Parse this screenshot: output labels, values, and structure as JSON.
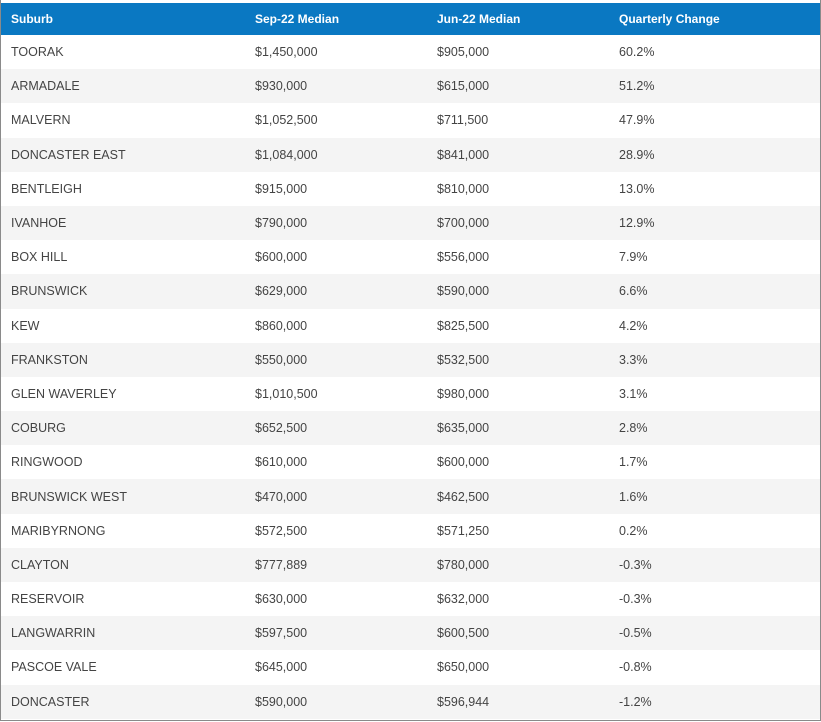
{
  "table": {
    "headers": [
      "Suburb",
      "Sep-22 Median",
      "Jun-22 Median",
      "Quarterly Change"
    ],
    "rows": [
      [
        "TOORAK",
        "$1,450,000",
        "$905,000",
        "60.2%"
      ],
      [
        "ARMADALE",
        "$930,000",
        "$615,000",
        "51.2%"
      ],
      [
        "MALVERN",
        "$1,052,500",
        "$711,500",
        "47.9%"
      ],
      [
        "DONCASTER EAST",
        "$1,084,000",
        "$841,000",
        "28.9%"
      ],
      [
        "BENTLEIGH",
        "$915,000",
        "$810,000",
        "13.0%"
      ],
      [
        "IVANHOE",
        "$790,000",
        "$700,000",
        "12.9%"
      ],
      [
        "BOX HILL",
        "$600,000",
        "$556,000",
        "7.9%"
      ],
      [
        "BRUNSWICK",
        "$629,000",
        "$590,000",
        "6.6%"
      ],
      [
        "KEW",
        "$860,000",
        "$825,500",
        "4.2%"
      ],
      [
        "FRANKSTON",
        "$550,000",
        "$532,500",
        "3.3%"
      ],
      [
        "GLEN WAVERLEY",
        "$1,010,500",
        "$980,000",
        "3.1%"
      ],
      [
        "COBURG",
        "$652,500",
        "$635,000",
        "2.8%"
      ],
      [
        "RINGWOOD",
        "$610,000",
        "$600,000",
        "1.7%"
      ],
      [
        "BRUNSWICK WEST",
        "$470,000",
        "$462,500",
        "1.6%"
      ],
      [
        "MARIBYRNONG",
        "$572,500",
        "$571,250",
        "0.2%"
      ],
      [
        "CLAYTON",
        "$777,889",
        "$780,000",
        "-0.3%"
      ],
      [
        "RESERVOIR",
        "$630,000",
        "$632,000",
        "-0.3%"
      ],
      [
        "LANGWARRIN",
        "$597,500",
        "$600,500",
        "-0.5%"
      ],
      [
        "PASCOE VALE",
        "$645,000",
        "$650,000",
        "-0.8%"
      ],
      [
        "DONCASTER",
        "$590,000",
        "$596,944",
        "-1.2%"
      ]
    ]
  },
  "colors": {
    "header_bg": "#0a78c2",
    "header_text": "#ffffff",
    "row_alt_bg": "#f4f4f4",
    "cell_text": "#444444"
  }
}
